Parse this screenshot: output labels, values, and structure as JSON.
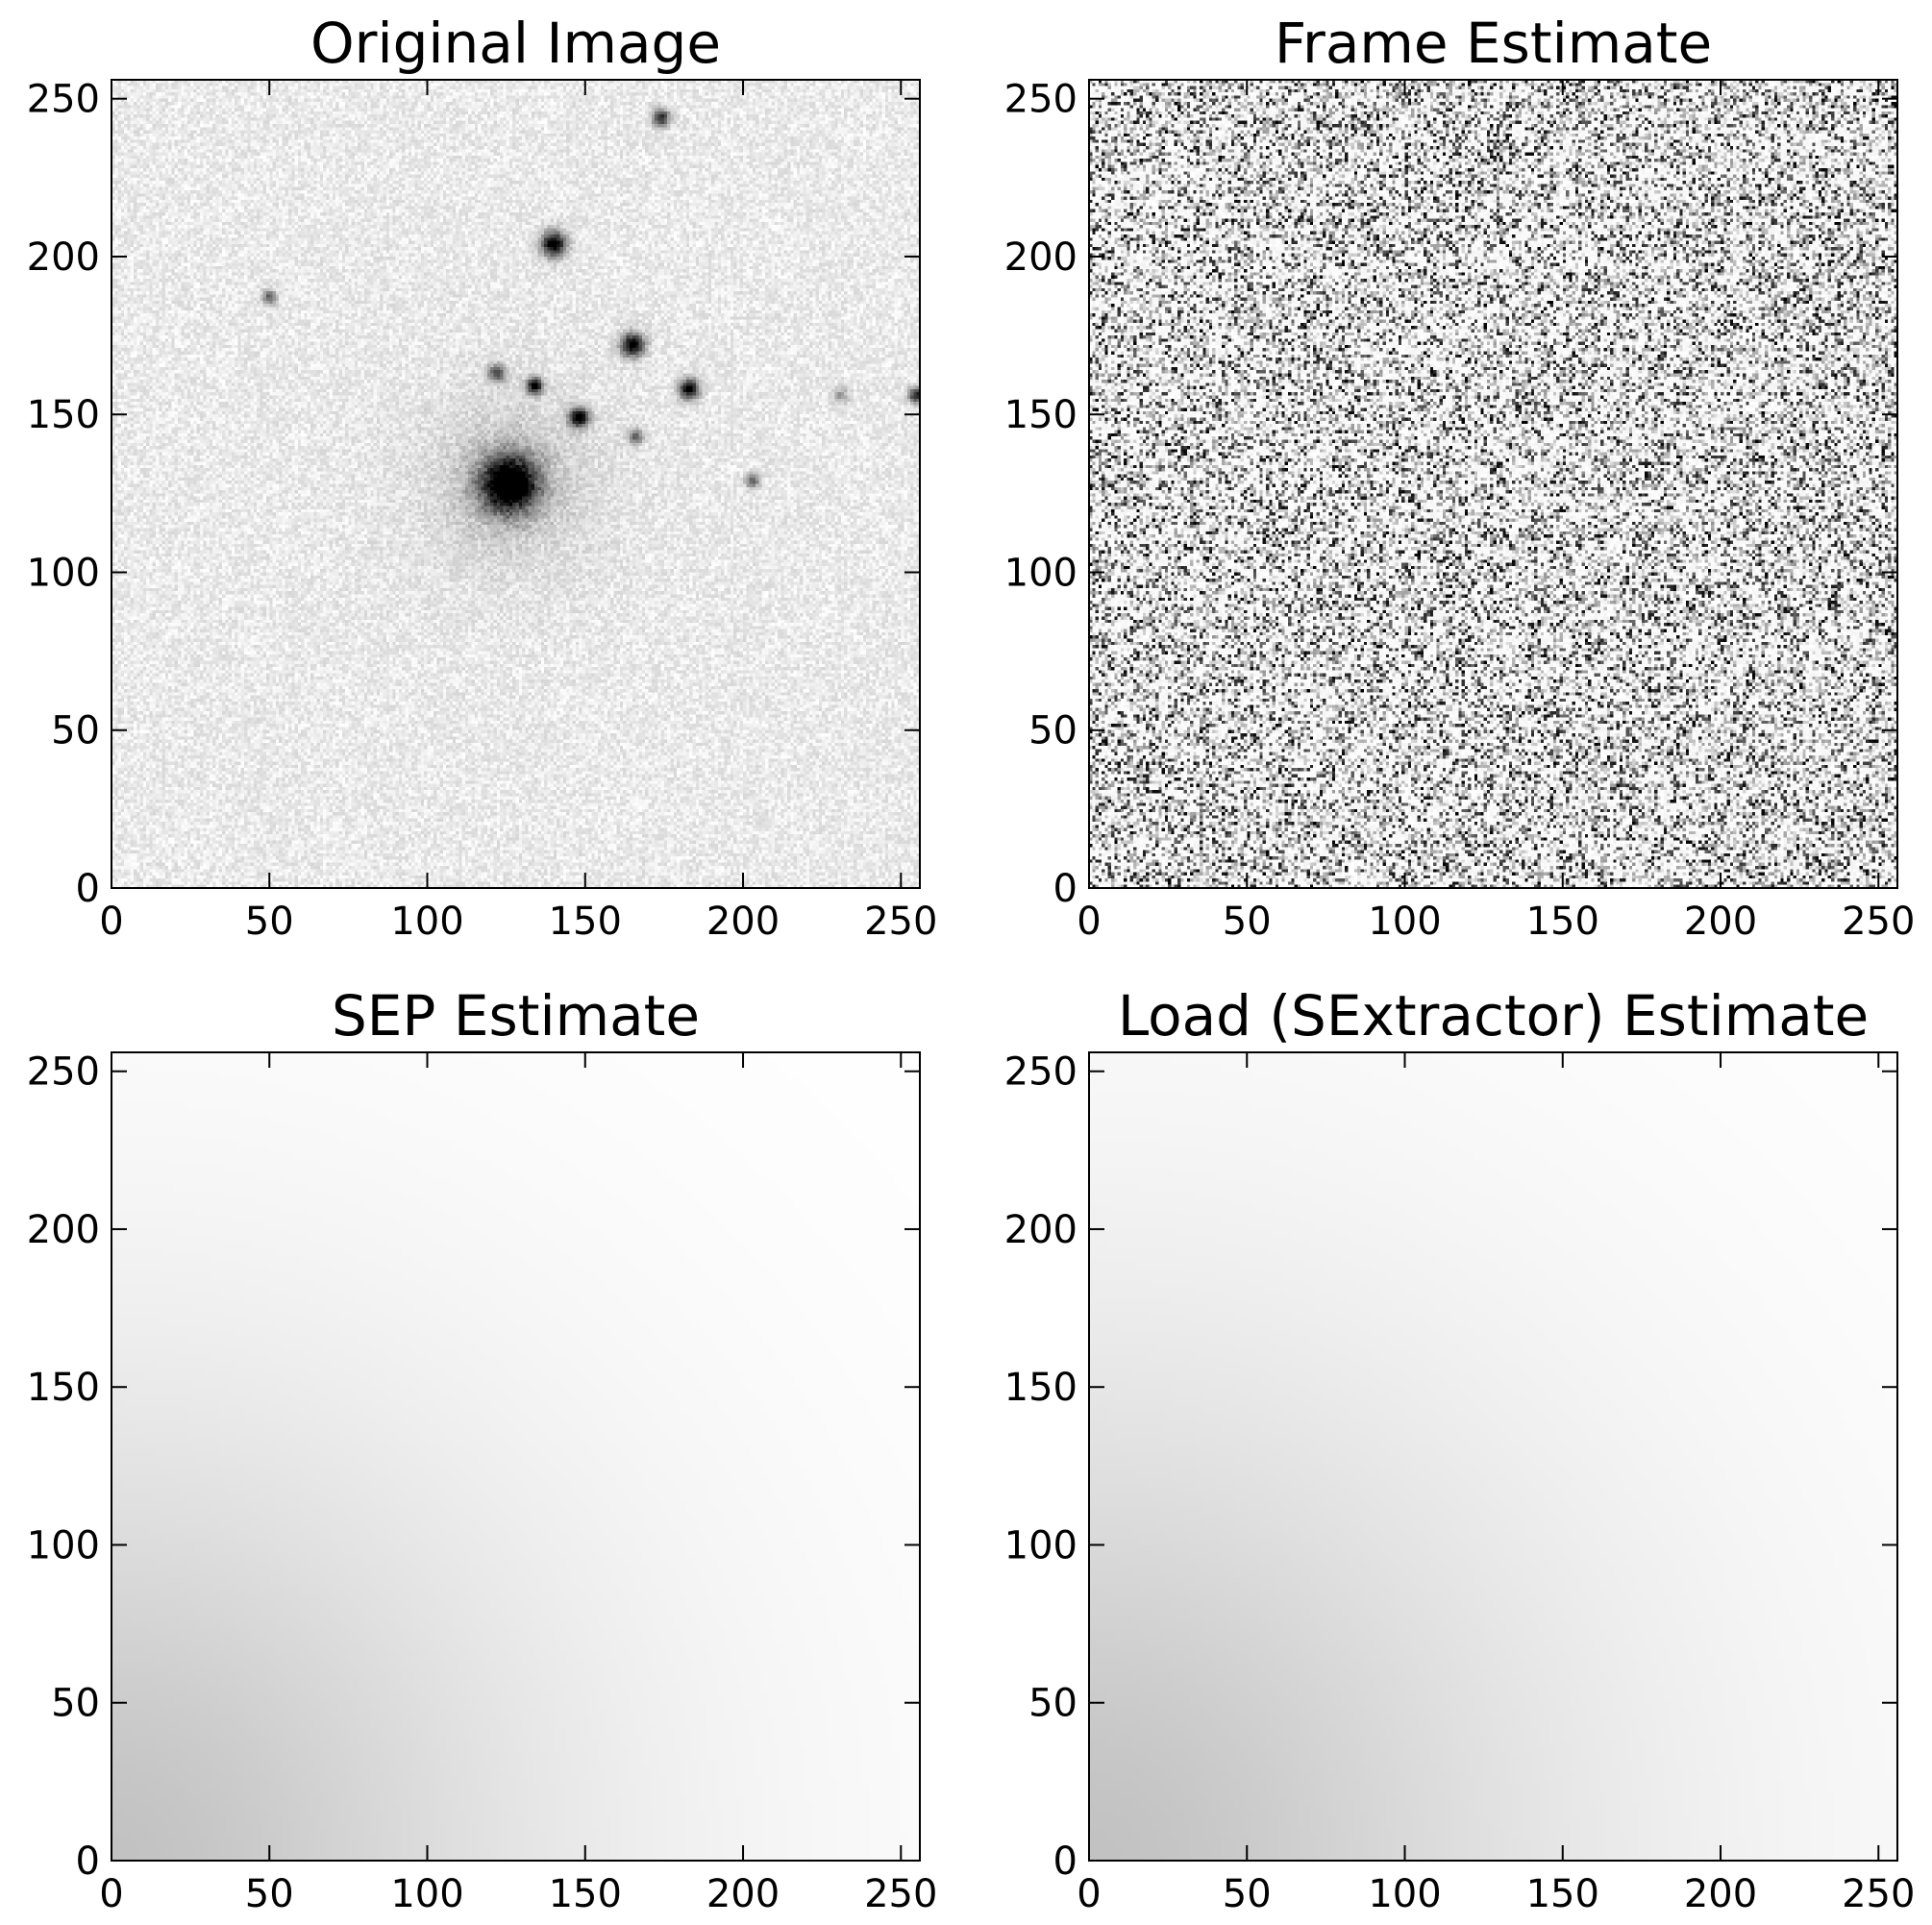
{
  "chart_data": [
    {
      "type": "heatmap",
      "title": "Original Image",
      "xlabel": "",
      "ylabel": "",
      "xlim": [
        0,
        256
      ],
      "ylim": [
        0,
        256
      ],
      "xticks": [
        0,
        50,
        100,
        150,
        200,
        250
      ],
      "yticks": [
        0,
        50,
        100,
        150,
        200,
        250
      ],
      "colormap": "gray_r",
      "background_level": 0.05,
      "noise": 0.08,
      "sources": [
        {
          "x": 126,
          "y": 128,
          "peak": 1.0,
          "sigma": 6,
          "halo": 20
        },
        {
          "x": 140,
          "y": 204,
          "peak": 1.0,
          "sigma": 2.8
        },
        {
          "x": 174,
          "y": 244,
          "peak": 0.75,
          "sigma": 2.0
        },
        {
          "x": 50,
          "y": 187,
          "peak": 0.55,
          "sigma": 1.6
        },
        {
          "x": 165,
          "y": 172,
          "peak": 1.0,
          "sigma": 2.6
        },
        {
          "x": 122,
          "y": 163,
          "peak": 0.6,
          "sigma": 2.0
        },
        {
          "x": 134,
          "y": 159,
          "peak": 0.95,
          "sigma": 1.8
        },
        {
          "x": 183,
          "y": 158,
          "peak": 1.0,
          "sigma": 2.2
        },
        {
          "x": 148,
          "y": 149,
          "peak": 1.0,
          "sigma": 2.2
        },
        {
          "x": 166,
          "y": 143,
          "peak": 0.55,
          "sigma": 1.6
        },
        {
          "x": 203,
          "y": 129,
          "peak": 0.55,
          "sigma": 1.6
        },
        {
          "x": 231,
          "y": 156,
          "peak": 0.3,
          "sigma": 1.8
        },
        {
          "x": 255,
          "y": 156,
          "peak": 0.8,
          "sigma": 1.8
        }
      ]
    },
    {
      "type": "heatmap",
      "title": "Frame Estimate",
      "xlabel": "",
      "ylabel": "",
      "xlim": [
        0,
        256
      ],
      "ylim": [
        0,
        256
      ],
      "xticks": [
        0,
        50,
        100,
        150,
        200,
        250
      ],
      "yticks": [
        0,
        50,
        100,
        150,
        200,
        250
      ],
      "colormap": "gray_r",
      "pattern": "pixel noise"
    },
    {
      "type": "heatmap",
      "title": "SEP Estimate",
      "xlabel": "",
      "ylabel": "",
      "xlim": [
        0,
        256
      ],
      "ylim": [
        0,
        256
      ],
      "xticks": [
        0,
        50,
        100,
        150,
        200,
        250
      ],
      "yticks": [
        0,
        50,
        100,
        150,
        200,
        250
      ],
      "colormap": "gray_r",
      "gradient": {
        "max_level": 0.24,
        "decay": 145,
        "corner": "bottom-left"
      }
    },
    {
      "type": "heatmap",
      "title": "Load (SExtractor) Estimate",
      "xlabel": "",
      "ylabel": "",
      "xlim": [
        0,
        256
      ],
      "ylim": [
        0,
        256
      ],
      "xticks": [
        0,
        50,
        100,
        150,
        200,
        250
      ],
      "yticks": [
        0,
        50,
        100,
        150,
        200,
        250
      ],
      "colormap": "gray_r",
      "gradient": {
        "max_level": 0.24,
        "decay": 160,
        "corner": "bottom-left"
      }
    }
  ]
}
